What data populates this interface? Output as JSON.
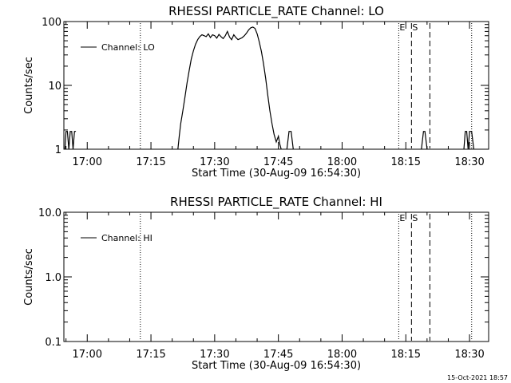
{
  "footer": {
    "timestamp": "15-Oct-2021 18:57"
  },
  "chart_data": [
    {
      "type": "line",
      "title": "RHESSI PARTICLE_RATE Channel: LO",
      "xlabel": "Start Time (30-Aug-09 16:54:30)",
      "ylabel": "Counts/sec",
      "yscale": "log",
      "xlim": [
        "16:54:30",
        "18:34:30"
      ],
      "ylim": [
        1,
        100
      ],
      "x_ticks": [
        "17:00",
        "17:15",
        "17:30",
        "17:45",
        "18:00",
        "18:15",
        "18:30"
      ],
      "y_ticks": [
        "1",
        "10",
        "100"
      ],
      "legend": {
        "position": "top-left",
        "label": "Channel: LO"
      },
      "series": [
        {
          "name": "Channel: LO",
          "segments": [
            {
              "x": [
                "16:54:45",
                "16:55:00",
                "16:55:20",
                "16:55:40",
                "16:56:00",
                "16:56:20",
                "16:56:40",
                "16:57:00",
                "16:57:20"
              ],
              "y": [
                1,
                1.9,
                1.9,
                1,
                1.9,
                1.9,
                1,
                1.9,
                1.9
              ]
            },
            {
              "x": [
                "17:21:20",
                "17:21:40",
                "17:22:00",
                "17:22:30",
                "17:23:00",
                "17:23:30",
                "17:24:00",
                "17:24:30",
                "17:25:00",
                "17:25:30",
                "17:26:00",
                "17:26:30",
                "17:27:00",
                "17:27:30",
                "17:28:00",
                "17:28:30",
                "17:29:00",
                "17:29:30",
                "17:30:00",
                "17:30:30",
                "17:31:00",
                "17:31:30",
                "17:32:00",
                "17:32:30",
                "17:33:00",
                "17:33:30",
                "17:34:00",
                "17:34:30",
                "17:35:00",
                "17:35:30",
                "17:36:00",
                "17:36:30",
                "17:37:00",
                "17:37:30",
                "17:38:00",
                "17:38:30",
                "17:39:00",
                "17:39:30",
                "17:40:00",
                "17:40:30",
                "17:41:00",
                "17:41:30",
                "17:42:00",
                "17:42:30",
                "17:43:00",
                "17:43:30",
                "17:44:00",
                "17:44:30",
                "17:45:00",
                "17:45:20",
                "17:45:40"
              ],
              "y": [
                1,
                1.6,
                2.5,
                4,
                6.5,
                11,
                17,
                26,
                35,
                44,
                52,
                58,
                62,
                60,
                58,
                64,
                56,
                62,
                60,
                55,
                63,
                58,
                54,
                60,
                70,
                57,
                52,
                62,
                56,
                52,
                54,
                56,
                60,
                66,
                74,
                80,
                82,
                78,
                64,
                48,
                34,
                22,
                13,
                7,
                4,
                2.5,
                1.7,
                1.3,
                1.6,
                1.2,
                1
              ]
            },
            {
              "x": [
                "17:47:00",
                "17:47:30",
                "17:48:00",
                "17:48:30"
              ],
              "y": [
                1,
                1.9,
                1.9,
                1
              ]
            },
            {
              "x": [
                "18:18:40",
                "18:19:10",
                "18:19:30",
                "18:20:00"
              ],
              "y": [
                1,
                1.9,
                1.9,
                1
              ]
            },
            {
              "x": [
                "18:28:40",
                "18:29:00",
                "18:29:20",
                "18:29:40",
                "18:30:00",
                "18:30:30",
                "18:31:00"
              ],
              "y": [
                1,
                1.9,
                1.9,
                1,
                1.9,
                1.9,
                1
              ]
            }
          ]
        }
      ],
      "markers": [
        {
          "time": "17:12:30",
          "style": "dotted",
          "label": ""
        },
        {
          "time": "18:13:20",
          "style": "dotted",
          "label": "E"
        },
        {
          "time": "18:16:20",
          "style": "dashed",
          "label": "S"
        },
        {
          "time": "18:20:40",
          "style": "dashed",
          "label": ""
        },
        {
          "time": "18:30:30",
          "style": "dotted",
          "label": ""
        }
      ]
    },
    {
      "type": "line",
      "title": "RHESSI PARTICLE_RATE Channel: HI",
      "xlabel": "Start Time (30-Aug-09 16:54:30)",
      "ylabel": "Counts/sec",
      "yscale": "log",
      "xlim": [
        "16:54:30",
        "18:34:30"
      ],
      "ylim": [
        0.1,
        10
      ],
      "x_ticks": [
        "17:00",
        "17:15",
        "17:30",
        "17:45",
        "18:00",
        "18:15",
        "18:30"
      ],
      "y_ticks": [
        "0.1",
        "1.0",
        "10.0"
      ],
      "legend": {
        "position": "top-left",
        "label": "Channel: HI"
      },
      "series": [
        {
          "name": "Channel: HI",
          "segments": []
        }
      ],
      "markers": [
        {
          "time": "17:12:30",
          "style": "dotted",
          "label": ""
        },
        {
          "time": "18:13:20",
          "style": "dotted",
          "label": "E"
        },
        {
          "time": "18:16:20",
          "style": "dashed",
          "label": "S"
        },
        {
          "time": "18:20:40",
          "style": "dashed",
          "label": ""
        },
        {
          "time": "18:30:30",
          "style": "dotted",
          "label": ""
        }
      ]
    }
  ]
}
